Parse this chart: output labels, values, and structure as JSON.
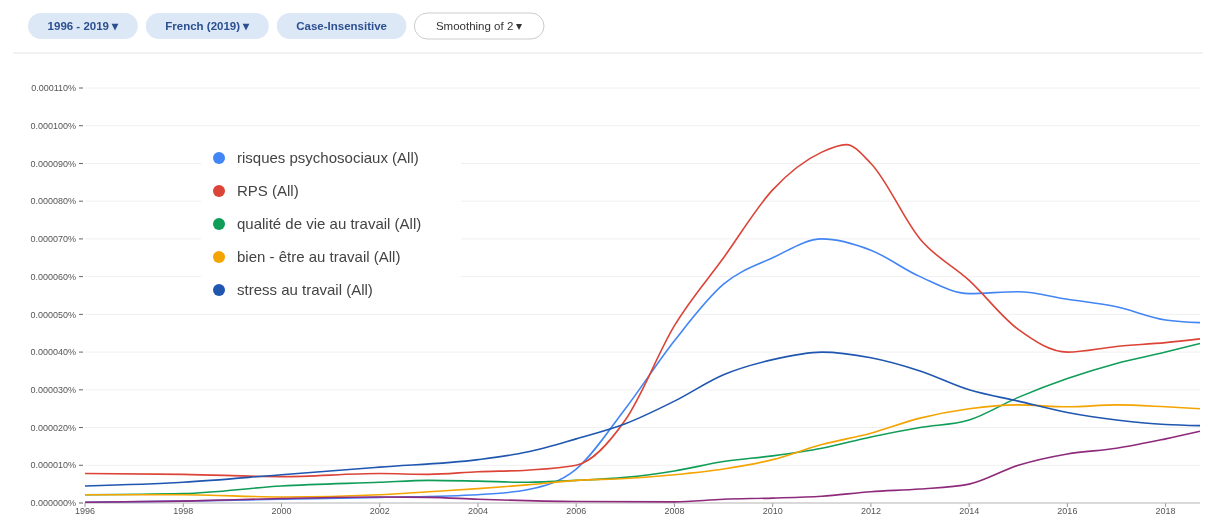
{
  "chart_data": {
    "type": "line",
    "annotations": [
      "1996 - 2019 ▾",
      "French (2019) ▾",
      "Case-Insensitive",
      "Smoothing of 2 ▾"
    ],
    "xlim": [
      1996,
      2018.7
    ],
    "xticks": [
      1996,
      1998,
      2000,
      2002,
      2004,
      2006,
      2008,
      2010,
      2012,
      2014,
      2016,
      2018
    ],
    "ylim": [
      0,
      0.00011
    ],
    "yticks": [
      {
        "value": 0,
        "label": "0.000000%"
      },
      {
        "value": 1e-05,
        "label": "0.000010%"
      },
      {
        "value": 2e-05,
        "label": "0.000020%"
      },
      {
        "value": 3e-05,
        "label": "0.000030%"
      },
      {
        "value": 4e-05,
        "label": "0.000040%"
      },
      {
        "value": 5e-05,
        "label": "0.000050%"
      },
      {
        "value": 6e-05,
        "label": "0.000060%"
      },
      {
        "value": 7e-05,
        "label": "0.000070%"
      },
      {
        "value": 8e-05,
        "label": "0.000080%"
      },
      {
        "value": 9e-05,
        "label": "0.000090%"
      },
      {
        "value": 0.0001,
        "label": "0.000100%"
      },
      {
        "value": 0.00011,
        "label": "0.000110%"
      }
    ],
    "grid": "y",
    "legend": "top left",
    "marker": "none",
    "line_style": "solid",
    "series": [
      {
        "name": "risques psychosociaux (All)",
        "color": "#4285f4",
        "x": [
          1996,
          1998,
          2000,
          2002,
          2004,
          2005,
          2006,
          2007,
          2008,
          2009,
          2010,
          2011,
          2012,
          2013,
          2014,
          2015,
          2016,
          2017,
          2018,
          2018.7
        ],
        "values": [
          2e-07,
          5e-07,
          1e-06,
          1.5e-06,
          2.2e-06,
          3.5e-06,
          9e-06,
          2.5e-05,
          4.3e-05,
          5.8e-05,
          6.5e-05,
          7e-05,
          6.7e-05,
          6e-05,
          5.55e-05,
          5.6e-05,
          5.4e-05,
          5.2e-05,
          4.85e-05,
          4.78e-05
        ]
      },
      {
        "name": "RPS (All)",
        "color": "#db4437",
        "x": [
          1996,
          1998,
          2000,
          2002,
          2003,
          2004,
          2005,
          2006,
          2007,
          2008,
          2009,
          2010,
          2011,
          2011.5,
          2012,
          2013,
          2014,
          2015,
          2016,
          2017,
          2018,
          2018.7
        ],
        "values": [
          7.8e-06,
          7.6e-06,
          7e-06,
          7.8e-06,
          7.6e-06,
          8.3e-06,
          8.7e-06,
          1e-05,
          2.2e-05,
          4.7e-05,
          6.5e-05,
          8.3e-05,
          9.3e-05,
          9.5e-05,
          9e-05,
          7e-05,
          5.9e-05,
          4.6e-05,
          4e-05,
          4.15e-05,
          4.25e-05,
          4.35e-05
        ]
      },
      {
        "name": "qualité de vie au travail (All)",
        "color": "#0f9d58",
        "x": [
          1996,
          1998,
          2000,
          2002,
          2003,
          2004,
          2005,
          2006,
          2007,
          2008,
          2009,
          2010,
          2011,
          2012,
          2013,
          2014,
          2015,
          2016,
          2017,
          2018,
          2018.7
        ],
        "values": [
          2.2e-06,
          2.5e-06,
          4.5e-06,
          5.5e-06,
          6e-06,
          5.8e-06,
          5.5e-06,
          6e-06,
          6.8e-06,
          8.5e-06,
          1.1e-05,
          1.25e-05,
          1.45e-05,
          1.75e-05,
          2e-05,
          2.2e-05,
          2.8e-05,
          3.3e-05,
          3.7e-05,
          4e-05,
          4.23e-05
        ]
      },
      {
        "name": "bien - être au travail (All)",
        "color": "#f4a400",
        "x": [
          1996,
          1998,
          2000,
          2002,
          2003,
          2004,
          2005,
          2006,
          2007,
          2008,
          2009,
          2010,
          2011,
          2012,
          2013,
          2014,
          2015,
          2016,
          2017,
          2018,
          2018.7
        ],
        "values": [
          2.2e-06,
          2.2e-06,
          1.6e-06,
          2.2e-06,
          3e-06,
          3.8e-06,
          4.8e-06,
          6e-06,
          6.5e-06,
          7.5e-06,
          9e-06,
          1.15e-05,
          1.55e-05,
          1.85e-05,
          2.25e-05,
          2.5e-05,
          2.6e-05,
          2.55e-05,
          2.6e-05,
          2.55e-05,
          2.5e-05
        ]
      },
      {
        "name": "stress au travail (All)",
        "color": "#1f56b0",
        "x": [
          1996,
          1998,
          2000,
          2002,
          2004,
          2005,
          2006,
          2007,
          2008,
          2009,
          2010,
          2011,
          2012,
          2013,
          2014,
          2015,
          2016,
          2017,
          2018,
          2018.7
        ],
        "values": [
          4.5e-06,
          5.5e-06,
          7.5e-06,
          9.5e-06,
          1.15e-05,
          1.35e-05,
          1.7e-05,
          2.1e-05,
          2.7e-05,
          3.4e-05,
          3.8e-05,
          4e-05,
          3.85e-05,
          3.5e-05,
          3e-05,
          2.7e-05,
          2.4e-05,
          2.2e-05,
          2.08e-05,
          2.05e-05
        ]
      },
      {
        "color": "#8e2a7b",
        "x": [
          1996,
          1998,
          2000,
          2002,
          2003,
          2004,
          2006,
          2008,
          2009,
          2010,
          2011,
          2012,
          2013,
          2014,
          2015,
          2016,
          2017,
          2018,
          2018.7
        ],
        "values": [
          2e-07,
          5e-07,
          1.2e-06,
          1.6e-06,
          1.5e-06,
          1e-06,
          4e-07,
          3e-07,
          1e-06,
          1.3e-06,
          1.8e-06,
          3e-06,
          3.7e-06,
          5e-06,
          1e-05,
          1.3e-05,
          1.45e-05,
          1.7e-05,
          1.9e-05
        ]
      }
    ]
  }
}
